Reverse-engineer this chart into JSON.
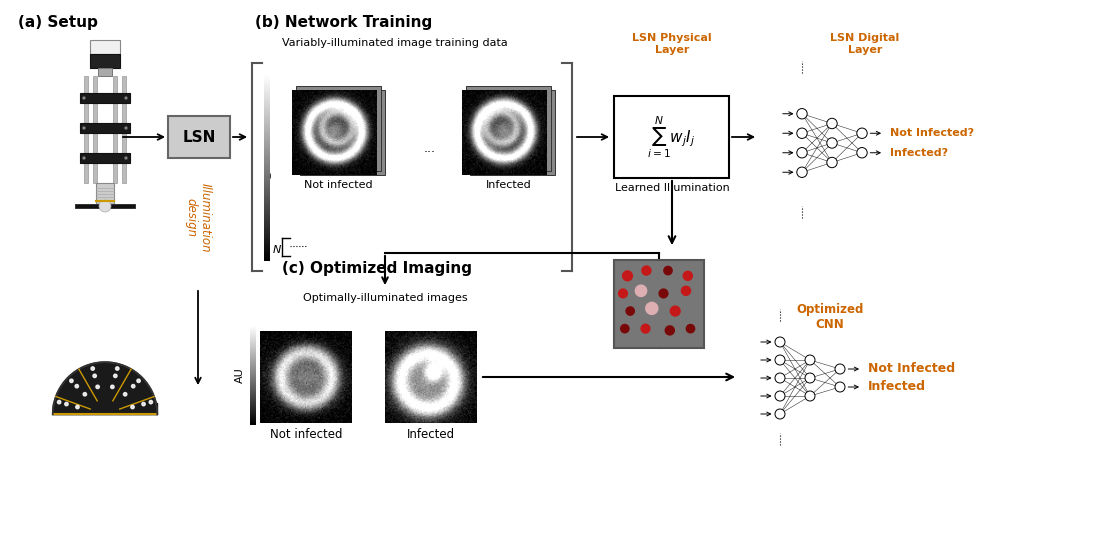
{
  "title_a": "(a) Setup",
  "title_b": "(b) Network Training",
  "title_c": "(c) Optimized Imaging",
  "lsn_box_label": "LSN",
  "var_illum_label": "Variably-illuminated image training data",
  "lsn_phys_label": "LSN Physical\nLayer",
  "lsn_dig_label": "LSN Digital\nLayer",
  "learned_illum_label": "Learned Illumination",
  "not_infected_b": "Not infected",
  "infected_b": "Infected",
  "optimized_cnn_label": "Optimized\nCNN",
  "opt_illum_label": "Optimally-illuminated images",
  "infected_label": "Infected",
  "not_infected_label": "Not Infected",
  "infected_q": "Infected?",
  "not_infected_q": "Not Infected?",
  "au_label": "AU",
  "not_infected_c": "Not infected",
  "infected_c": "Infected",
  "illum_design": "Illumination\ndesign",
  "bg_color": "#ffffff",
  "red_dot": "#cc1111",
  "dark_red_dot": "#7a0000",
  "pink_dot": "#e8b4b8",
  "orange_text": "#cc6600",
  "black": "#000000",
  "gray_bracket": "#555555"
}
